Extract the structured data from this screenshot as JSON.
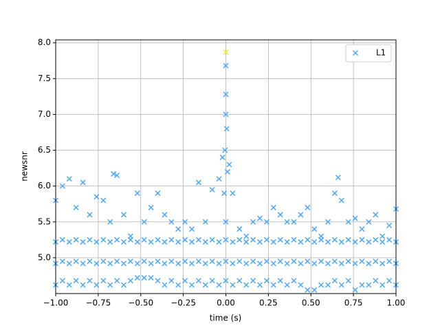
{
  "chart_data": {
    "type": "scatter",
    "xlabel": "time (s)",
    "ylabel": "newsnr",
    "xlim": [
      -1,
      1
    ],
    "ylim": [
      4.5,
      8.04
    ],
    "xticks": [
      {
        "value": -1,
        "label": "−1.00"
      },
      {
        "value": -0.75,
        "label": "−0.75"
      },
      {
        "value": -0.5,
        "label": "−0.50"
      },
      {
        "value": -0.25,
        "label": "−0.25"
      },
      {
        "value": 0,
        "label": "0.00"
      },
      {
        "value": 0.25,
        "label": "0.25"
      },
      {
        "value": 0.5,
        "label": "0.50"
      },
      {
        "value": 0.75,
        "label": "0.75"
      },
      {
        "value": 1,
        "label": "1.00"
      }
    ],
    "yticks": [
      {
        "value": 5,
        "label": "5.0"
      },
      5.5,
      {
        "value": 6,
        "label": "6.0"
      },
      6.5,
      {
        "value": 7,
        "label": "7.0"
      },
      7.5,
      {
        "value": 8,
        "label": "8.0"
      }
    ],
    "grid": true,
    "legend": "upper right",
    "series": [
      {
        "name": "L1",
        "color": "#4aa8ff",
        "x": [
          -1,
          -1,
          -1,
          -1,
          -0.96,
          -0.96,
          -0.96,
          -0.96,
          -0.92,
          -0.92,
          -0.92,
          -0.92,
          -0.88,
          -0.88,
          -0.88,
          -0.88,
          -0.84,
          -0.84,
          -0.84,
          -0.84,
          -0.8,
          -0.8,
          -0.8,
          -0.8,
          -0.76,
          -0.76,
          -0.76,
          -0.76,
          -0.72,
          -0.72,
          -0.72,
          -0.72,
          -0.68,
          -0.68,
          -0.68,
          -0.68,
          -0.64,
          -0.64,
          -0.64,
          -0.64,
          -0.6,
          -0.6,
          -0.6,
          -0.6,
          -0.56,
          -0.56,
          -0.56,
          -0.56,
          -0.52,
          -0.52,
          -0.52,
          -0.52,
          -0.48,
          -0.48,
          -0.48,
          -0.48,
          -0.44,
          -0.44,
          -0.44,
          -0.44,
          -0.4,
          -0.4,
          -0.4,
          -0.4,
          -0.36,
          -0.36,
          -0.36,
          -0.36,
          -0.32,
          -0.32,
          -0.32,
          -0.32,
          -0.28,
          -0.28,
          -0.28,
          -0.28,
          -0.24,
          -0.24,
          -0.24,
          -0.24,
          -0.2,
          -0.2,
          -0.2,
          -0.2,
          -0.16,
          -0.16,
          -0.16,
          -0.16,
          -0.12,
          -0.12,
          -0.12,
          -0.12,
          -0.08,
          -0.08,
          -0.08,
          -0.08,
          -0.04,
          -0.04,
          -0.04,
          -0.04,
          0,
          0,
          0,
          0,
          0.04,
          0.04,
          0.04,
          0.04,
          0.08,
          0.08,
          0.08,
          0.08,
          0.12,
          0.12,
          0.12,
          0.12,
          0.16,
          0.16,
          0.16,
          0.16,
          0.2,
          0.2,
          0.2,
          0.2,
          0.24,
          0.24,
          0.24,
          0.24,
          0.28,
          0.28,
          0.28,
          0.28,
          0.32,
          0.32,
          0.32,
          0.32,
          0.36,
          0.36,
          0.36,
          0.36,
          0.4,
          0.4,
          0.4,
          0.4,
          0.44,
          0.44,
          0.44,
          0.44,
          0.48,
          0.48,
          0.48,
          0.48,
          0.52,
          0.52,
          0.52,
          0.52,
          0.56,
          0.56,
          0.56,
          0.56,
          0.6,
          0.6,
          0.6,
          0.6,
          0.64,
          0.64,
          0.64,
          0.64,
          0.68,
          0.68,
          0.68,
          0.68,
          0.72,
          0.72,
          0.72,
          0.72,
          0.76,
          0.76,
          0.76,
          0.76,
          0.8,
          0.8,
          0.8,
          0.8,
          0.84,
          0.84,
          0.84,
          0.84,
          0.88,
          0.88,
          0.88,
          0.88,
          0.92,
          0.92,
          0.92,
          0.92,
          0.96,
          0.96,
          0.96,
          0.96,
          1,
          1,
          1,
          1,
          0,
          0,
          0.005,
          -0.005,
          0.01,
          -0.01,
          0.02,
          -0.02,
          0,
          0.66,
          -0.66
        ],
        "values": [
          4.62,
          4.92,
          5.22,
          5.8,
          4.68,
          4.95,
          5.25,
          6.0,
          4.62,
          4.92,
          5.22,
          6.1,
          4.68,
          4.95,
          5.25,
          5.7,
          4.62,
          4.92,
          5.22,
          6.05,
          4.68,
          4.95,
          5.25,
          5.6,
          4.62,
          4.92,
          5.22,
          5.85,
          4.68,
          4.95,
          5.25,
          5.8,
          4.62,
          4.92,
          5.22,
          5.5,
          4.68,
          4.95,
          5.25,
          6.15,
          4.62,
          4.92,
          5.22,
          5.6,
          4.68,
          4.95,
          5.25,
          5.3,
          4.72,
          4.92,
          5.22,
          5.9,
          4.72,
          4.95,
          5.25,
          5.5,
          4.72,
          4.92,
          5.22,
          5.7,
          4.68,
          4.95,
          5.25,
          5.9,
          4.62,
          4.92,
          5.22,
          5.6,
          4.68,
          4.95,
          5.25,
          5.5,
          4.62,
          4.92,
          5.22,
          5.4,
          4.68,
          4.95,
          5.25,
          5.5,
          4.62,
          4.92,
          5.22,
          5.4,
          4.68,
          4.95,
          5.25,
          6.05,
          4.62,
          4.92,
          5.22,
          5.5,
          4.68,
          4.95,
          5.25,
          5.95,
          4.62,
          4.92,
          5.22,
          6.1,
          4.68,
          4.95,
          5.25,
          7.28,
          4.62,
          4.92,
          5.22,
          5.9,
          4.68,
          4.95,
          5.25,
          5.4,
          4.62,
          4.92,
          5.22,
          5.3,
          4.68,
          4.95,
          5.25,
          5.5,
          4.62,
          4.92,
          5.22,
          5.55,
          4.68,
          4.95,
          5.25,
          5.5,
          4.62,
          4.92,
          5.22,
          5.7,
          4.68,
          4.95,
          5.25,
          5.6,
          4.62,
          4.92,
          5.22,
          5.5,
          4.68,
          4.95,
          5.25,
          5.5,
          4.62,
          4.92,
          5.22,
          5.6,
          4.55,
          4.95,
          5.25,
          5.7,
          4.55,
          4.92,
          5.22,
          5.4,
          4.62,
          4.95,
          5.25,
          5.3,
          4.62,
          4.92,
          5.22,
          5.5,
          4.68,
          4.95,
          5.25,
          5.9,
          4.62,
          4.92,
          5.22,
          5.8,
          4.68,
          4.95,
          5.25,
          5.5,
          4.55,
          4.92,
          5.22,
          5.55,
          4.62,
          4.95,
          5.25,
          5.4,
          4.62,
          4.92,
          5.22,
          5.5,
          4.68,
          4.95,
          5.25,
          5.6,
          4.62,
          4.92,
          5.22,
          5.3,
          4.68,
          4.95,
          5.25,
          5.45,
          4.62,
          4.92,
          5.22,
          5.68,
          7.68,
          7.0,
          6.8,
          6.5,
          6.2,
          5.9,
          6.3,
          6.4,
          5.5,
          6.12,
          6.17
        ]
      }
    ],
    "highlight": {
      "x": 0,
      "y": 7.87,
      "color": "#f0f020"
    }
  }
}
